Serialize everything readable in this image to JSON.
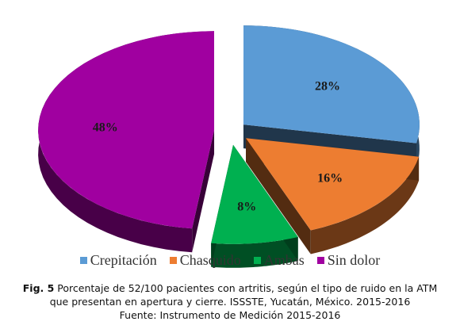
{
  "chart_data": {
    "type": "pie",
    "categories": [
      "Crepitación",
      "Chasquido",
      "Ambas",
      "Sin dolor"
    ],
    "values": [
      28,
      16,
      8,
      48
    ],
    "data_labels": [
      "28%",
      "16%",
      "8%",
      "48%"
    ],
    "colors": [
      "#5b9bd5",
      "#ed7d31",
      "#00b050",
      "#a000a0"
    ],
    "exploded": true,
    "three_d": true,
    "legend_placement": "bottom"
  },
  "caption": {
    "fig_label": "Fig. 5",
    "line1": " Porcentaje de 52/100 pacientes con artritis, según el tipo de ruido en la ATM",
    "line2": "que presentan en apertura y cierre. ISSSTE, Yucatán, México. 2015-2016",
    "line3": "Fuente: Instrumento de Medición 2015-2016"
  }
}
